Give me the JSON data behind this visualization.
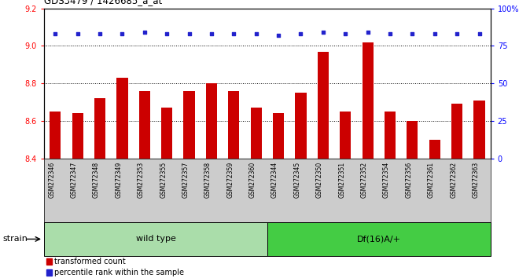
{
  "title": "GDS3479 / 1426685_a_at",
  "categories": [
    "GSM272346",
    "GSM272347",
    "GSM272348",
    "GSM272349",
    "GSM272353",
    "GSM272355",
    "GSM272357",
    "GSM272358",
    "GSM272359",
    "GSM272360",
    "GSM272344",
    "GSM272345",
    "GSM272350",
    "GSM272351",
    "GSM272352",
    "GSM272354",
    "GSM272356",
    "GSM272361",
    "GSM272362",
    "GSM272363"
  ],
  "bar_values": [
    8.65,
    8.64,
    8.72,
    8.83,
    8.76,
    8.67,
    8.76,
    8.8,
    8.76,
    8.67,
    8.64,
    8.75,
    8.97,
    8.65,
    9.02,
    8.65,
    8.6,
    8.5,
    8.69,
    8.71
  ],
  "percentile_values": [
    83,
    83,
    83,
    83,
    84,
    83,
    83,
    83,
    83,
    83,
    82,
    83,
    84,
    83,
    84,
    83,
    83,
    83,
    83,
    83
  ],
  "bar_color": "#cc0000",
  "percentile_color": "#2222cc",
  "bar_bottom": 8.4,
  "ylim_left": [
    8.4,
    9.2
  ],
  "ylim_right": [
    0,
    100
  ],
  "yticks_left": [
    8.4,
    8.6,
    8.8,
    9.0,
    9.2
  ],
  "yticks_right": [
    0,
    25,
    50,
    75,
    100
  ],
  "ytick_right_labels": [
    "0",
    "25",
    "50",
    "75",
    "100%"
  ],
  "grid_values": [
    8.6,
    8.8,
    9.0
  ],
  "wild_type_count": 10,
  "df16_count": 10,
  "strain_label": "strain",
  "group1_label": "wild type",
  "group2_label": "Df(16)A/+",
  "group1_color": "#aaddaa",
  "group2_color": "#44cc44",
  "legend_bar_label": "transformed count",
  "legend_pct_label": "percentile rank within the sample",
  "background_color": "#ffffff",
  "tick_area_color": "#cccccc"
}
